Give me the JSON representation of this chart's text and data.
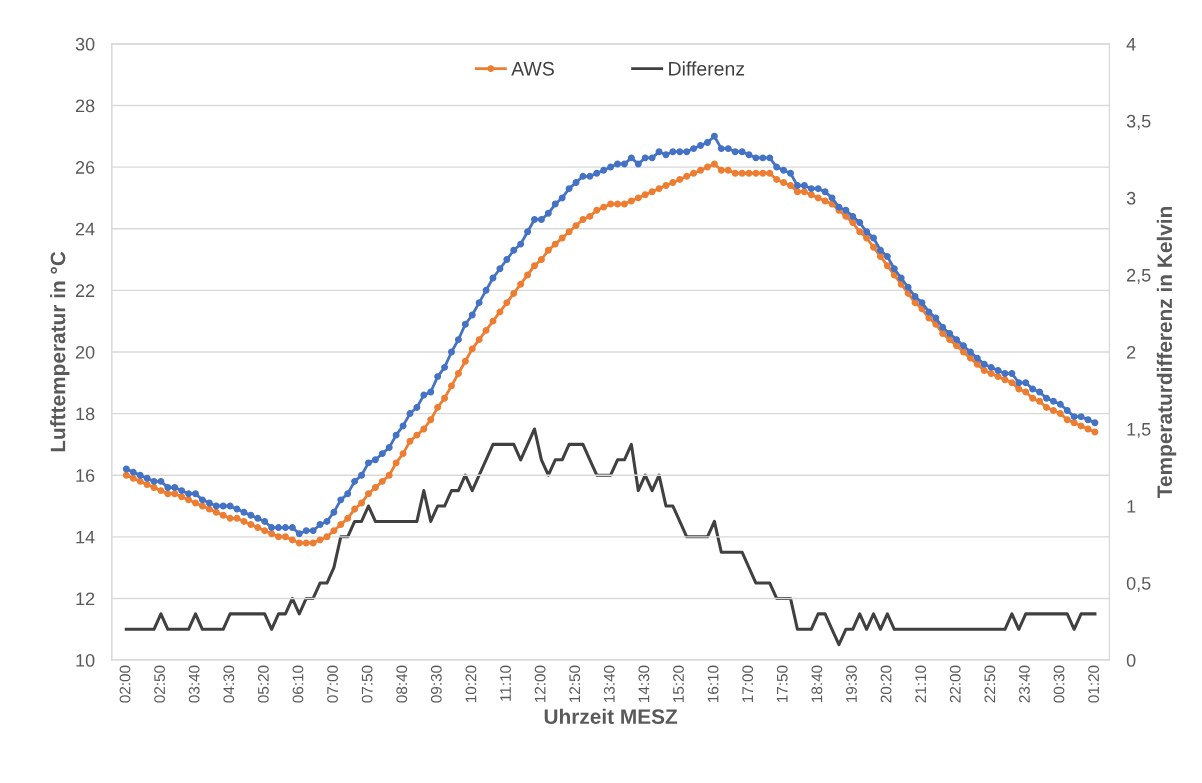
{
  "chart_data": {
    "type": "line",
    "categories": [
      "02:00",
      null,
      null,
      null,
      null,
      "02:50",
      null,
      null,
      null,
      null,
      "03:40",
      null,
      null,
      null,
      null,
      "04:30",
      null,
      null,
      null,
      null,
      "05:20",
      null,
      null,
      null,
      null,
      "06:10",
      null,
      null,
      null,
      null,
      "07:00",
      null,
      null,
      null,
      null,
      "07:50",
      null,
      null,
      null,
      null,
      "08:40",
      null,
      null,
      null,
      null,
      "09:30",
      null,
      null,
      null,
      null,
      "10:20",
      null,
      null,
      null,
      null,
      "11:10",
      null,
      null,
      null,
      null,
      "12:00",
      null,
      null,
      null,
      null,
      "12:50",
      null,
      null,
      null,
      null,
      "13:40",
      null,
      null,
      null,
      null,
      "14:30",
      null,
      null,
      null,
      null,
      "15:20",
      null,
      null,
      null,
      null,
      "16:10",
      null,
      null,
      null,
      null,
      "17:00",
      null,
      null,
      null,
      null,
      "17:50",
      null,
      null,
      null,
      null,
      "18:40",
      null,
      null,
      null,
      null,
      "19:30",
      null,
      null,
      null,
      null,
      "20:20",
      null,
      null,
      null,
      null,
      "21:10",
      null,
      null,
      null,
      null,
      "22:00",
      null,
      null,
      null,
      null,
      "22:50",
      null,
      null,
      null,
      null,
      "23:40",
      null,
      null,
      null,
      null,
      "00:30",
      null,
      null,
      null,
      null,
      "01:20"
    ],
    "series": [
      {
        "name": "AWS",
        "color": "#ed7d31",
        "marker": "circle",
        "values": [
          16.0,
          15.9,
          15.8,
          15.7,
          15.6,
          15.5,
          15.4,
          15.4,
          15.3,
          15.2,
          15.1,
          15.0,
          14.9,
          14.8,
          14.7,
          14.6,
          14.6,
          14.5,
          14.4,
          14.3,
          14.2,
          14.1,
          14.0,
          14.0,
          13.9,
          13.8,
          13.8,
          13.8,
          13.9,
          14.0,
          14.2,
          14.4,
          14.6,
          14.9,
          15.1,
          15.4,
          15.6,
          15.8,
          16.0,
          16.4,
          16.7,
          17.1,
          17.3,
          17.5,
          17.8,
          18.2,
          18.5,
          18.9,
          19.3,
          19.7,
          20.1,
          20.4,
          20.7,
          21.0,
          21.3,
          21.6,
          21.9,
          22.2,
          22.5,
          22.8,
          23.0,
          23.3,
          23.5,
          23.7,
          23.9,
          24.1,
          24.3,
          24.4,
          24.6,
          24.7,
          24.8,
          24.8,
          24.8,
          24.9,
          25.0,
          25.1,
          25.2,
          25.3,
          25.4,
          25.5,
          25.6,
          25.7,
          25.8,
          25.9,
          26.0,
          26.1,
          25.9,
          25.9,
          25.8,
          25.8,
          25.8,
          25.8,
          25.8,
          25.8,
          25.6,
          25.5,
          25.4,
          25.2,
          25.2,
          25.1,
          25.0,
          24.9,
          24.8,
          24.6,
          24.4,
          24.2,
          23.9,
          23.7,
          23.4,
          23.1,
          22.8,
          22.5,
          22.2,
          21.9,
          21.6,
          21.4,
          21.1,
          20.9,
          20.6,
          20.4,
          20.2,
          20.0,
          19.8,
          19.6,
          19.4,
          19.3,
          19.2,
          19.1,
          19.0,
          18.8,
          18.7,
          18.5,
          18.4,
          18.2,
          18.1,
          18.0,
          17.8,
          17.7,
          17.6,
          17.5,
          17.4
        ]
      },
      {
        "color": "#4472c4",
        "marker": "circle",
        "values": [
          16.2,
          16.1,
          16.0,
          15.9,
          15.8,
          15.8,
          15.6,
          15.6,
          15.5,
          15.4,
          15.4,
          15.2,
          15.1,
          15.0,
          15.0,
          15.0,
          14.9,
          14.8,
          14.7,
          14.6,
          14.5,
          14.3,
          14.3,
          14.3,
          14.3,
          14.1,
          14.2,
          14.2,
          14.4,
          14.5,
          14.8,
          15.2,
          15.4,
          15.8,
          16.0,
          16.4,
          16.5,
          16.7,
          16.9,
          17.3,
          17.6,
          18.0,
          18.2,
          18.6,
          18.7,
          19.2,
          19.5,
          20.0,
          20.4,
          20.9,
          21.2,
          21.6,
          22.0,
          22.4,
          22.7,
          23.0,
          23.3,
          23.5,
          23.9,
          24.3,
          24.3,
          24.5,
          24.8,
          25.0,
          25.3,
          25.5,
          25.7,
          25.7,
          25.8,
          25.9,
          26.0,
          26.1,
          26.1,
          26.3,
          26.1,
          26.3,
          26.3,
          26.5,
          26.4,
          26.5,
          26.5,
          26.5,
          26.6,
          26.7,
          26.8,
          27.0,
          26.6,
          26.6,
          26.5,
          26.5,
          26.4,
          26.3,
          26.3,
          26.3,
          26.0,
          25.9,
          25.8,
          25.4,
          25.4,
          25.3,
          25.3,
          25.2,
          25.0,
          24.7,
          24.6,
          24.4,
          24.2,
          23.9,
          23.7,
          23.3,
          23.1,
          22.7,
          22.4,
          22.1,
          21.8,
          21.6,
          21.3,
          21.1,
          20.8,
          20.6,
          20.4,
          20.2,
          20.0,
          19.8,
          19.6,
          19.5,
          19.4,
          19.3,
          19.3,
          19.0,
          19.0,
          18.8,
          18.7,
          18.5,
          18.4,
          18.3,
          18.1,
          17.9,
          17.9,
          17.8,
          17.7
        ]
      },
      {
        "name": "Differenz",
        "color": "#404040",
        "marker": "none",
        "axis": "y2",
        "values": [
          0.2,
          0.2,
          0.2,
          0.2,
          0.2,
          0.3,
          0.2,
          0.2,
          0.2,
          0.2,
          0.3,
          0.2,
          0.2,
          0.2,
          0.2,
          0.3,
          0.3,
          0.3,
          0.3,
          0.3,
          0.3,
          0.2,
          0.3,
          0.3,
          0.4,
          0.3,
          0.4,
          0.4,
          0.5,
          0.5,
          0.6,
          0.8,
          0.8,
          0.9,
          0.9,
          1.0,
          0.9,
          0.9,
          0.9,
          0.9,
          0.9,
          0.9,
          0.9,
          1.1,
          0.9,
          1.0,
          1.0,
          1.1,
          1.1,
          1.2,
          1.1,
          1.2,
          1.3,
          1.4,
          1.4,
          1.4,
          1.4,
          1.3,
          1.4,
          1.5,
          1.3,
          1.2,
          1.3,
          1.3,
          1.4,
          1.4,
          1.4,
          1.3,
          1.2,
          1.2,
          1.2,
          1.3,
          1.3,
          1.4,
          1.1,
          1.2,
          1.1,
          1.2,
          1.0,
          1.0,
          0.9,
          0.8,
          0.8,
          0.8,
          0.8,
          0.9,
          0.7,
          0.7,
          0.7,
          0.7,
          0.6,
          0.5,
          0.5,
          0.5,
          0.4,
          0.4,
          0.4,
          0.2,
          0.2,
          0.2,
          0.3,
          0.3,
          0.2,
          0.1,
          0.2,
          0.2,
          0.3,
          0.2,
          0.3,
          0.2,
          0.3,
          0.2,
          0.2,
          0.2,
          0.2,
          0.2,
          0.2,
          0.2,
          0.2,
          0.2,
          0.2,
          0.2,
          0.2,
          0.2,
          0.2,
          0.2,
          0.2,
          0.2,
          0.3,
          0.2,
          0.3,
          0.3,
          0.3,
          0.3,
          0.3,
          0.3,
          0.3,
          0.2,
          0.3,
          0.3,
          0.3
        ]
      }
    ],
    "xlabel": "Uhrzeit MESZ",
    "ylabel": "Lufttemperatur in °C",
    "y2label": "Temperaturdifferenz in Kelvin",
    "ylim": [
      10,
      30
    ],
    "yticks": [
      10,
      12,
      14,
      16,
      18,
      20,
      22,
      24,
      26,
      28,
      30
    ],
    "y2lim": [
      0,
      4
    ],
    "y2ticks": [
      0,
      {
        "value": 0.5,
        "label": "0,5"
      },
      1,
      {
        "value": 1.5,
        "label": "1,5"
      },
      2,
      {
        "value": 2.5,
        "label": "2,5"
      },
      3,
      {
        "value": 3.5,
        "label": "3,5"
      },
      4
    ],
    "grid": "y",
    "legend": "top",
    "line_style": "solid"
  }
}
